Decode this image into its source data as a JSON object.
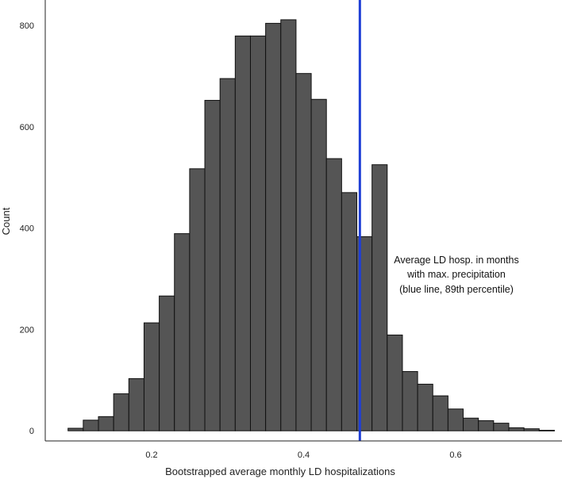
{
  "chart_data": {
    "type": "bar",
    "subtype": "histogram",
    "title": "",
    "xlabel": "Bootstrapped average monthly LD hospitalizations",
    "ylabel": "Count",
    "xlim": [
      0.06,
      0.74
    ],
    "ylim": [
      -20,
      850
    ],
    "xticks": [
      {
        "value": 0.2,
        "label": "0.2"
      },
      {
        "value": 0.4,
        "label": "0.4"
      },
      {
        "value": 0.6,
        "label": "0.6"
      }
    ],
    "yticks": [
      {
        "value": 0,
        "label": "0"
      },
      {
        "value": 200,
        "label": "200"
      },
      {
        "value": 400,
        "label": "400"
      },
      {
        "value": 600,
        "label": "600"
      },
      {
        "value": 800,
        "label": "800"
      }
    ],
    "bin_width": 0.02,
    "bins": [
      {
        "x0": 0.09,
        "count": 5
      },
      {
        "x0": 0.11,
        "count": 21
      },
      {
        "x0": 0.13,
        "count": 28
      },
      {
        "x0": 0.15,
        "count": 73
      },
      {
        "x0": 0.17,
        "count": 103
      },
      {
        "x0": 0.19,
        "count": 213
      },
      {
        "x0": 0.21,
        "count": 266
      },
      {
        "x0": 0.23,
        "count": 389
      },
      {
        "x0": 0.25,
        "count": 517
      },
      {
        "x0": 0.27,
        "count": 652
      },
      {
        "x0": 0.29,
        "count": 695
      },
      {
        "x0": 0.31,
        "count": 779
      },
      {
        "x0": 0.33,
        "count": 779
      },
      {
        "x0": 0.35,
        "count": 804
      },
      {
        "x0": 0.37,
        "count": 811
      },
      {
        "x0": 0.39,
        "count": 705
      },
      {
        "x0": 0.41,
        "count": 654
      },
      {
        "x0": 0.43,
        "count": 537
      },
      {
        "x0": 0.45,
        "count": 470
      },
      {
        "x0": 0.47,
        "count": 383
      },
      {
        "x0": 0.49,
        "count": 525
      },
      {
        "x0": 0.51,
        "count": 189
      },
      {
        "x0": 0.53,
        "count": 117
      },
      {
        "x0": 0.55,
        "count": 92
      },
      {
        "x0": 0.57,
        "count": 69
      },
      {
        "x0": 0.59,
        "count": 43
      },
      {
        "x0": 0.61,
        "count": 25
      },
      {
        "x0": 0.63,
        "count": 20
      },
      {
        "x0": 0.65,
        "count": 15
      },
      {
        "x0": 0.67,
        "count": 6
      },
      {
        "x0": 0.69,
        "count": 4
      },
      {
        "x0": 0.71,
        "count": 1
      }
    ],
    "reference_line": {
      "x": 0.474,
      "percentile": 89,
      "label_lines": [
        "Average LD hosp. in months",
        "with max. precipitation",
        "(blue line, 89th percentile)"
      ]
    },
    "grid": false
  },
  "colors": {
    "bar_fill": "#555555",
    "bar_stroke": "#111111",
    "reference_line": "#1f3fd6",
    "axis": "#222222"
  }
}
